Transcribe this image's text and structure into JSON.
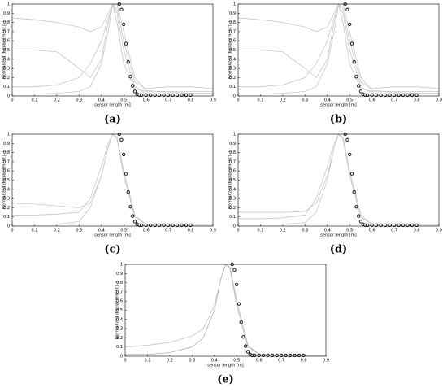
{
  "chart_data": [
    {
      "type": "line",
      "label": "(a)",
      "xlabel": "sensor length [m]",
      "ylabel": "Normalized displacement [-]",
      "xlim": [
        0,
        0.9
      ],
      "ylim": [
        0,
        1
      ],
      "grid": false,
      "xticks": [
        0,
        0.1,
        0.2,
        0.3,
        0.4,
        0.5,
        0.6,
        0.7,
        0.8,
        0.9
      ],
      "yticks": [
        0,
        0.1,
        0.2,
        0.3,
        0.4,
        0.5,
        0.6,
        0.7,
        0.8,
        0.9,
        1
      ],
      "series": [
        {
          "color": "#c8c8c8",
          "marker": false,
          "x": [
            0,
            0.1,
            0.2,
            0.3,
            0.35,
            0.4,
            0.43,
            0.45,
            0.47,
            0.5,
            0.55,
            0.6,
            0.7,
            0.8,
            0.9
          ],
          "values": [
            0.85,
            0.83,
            0.8,
            0.75,
            0.7,
            0.75,
            0.9,
            1,
            0.8,
            0.35,
            0.08,
            0.05,
            0.05,
            0.05,
            0.05
          ]
        },
        {
          "color": "#c8c8c8",
          "marker": false,
          "x": [
            0,
            0.1,
            0.2,
            0.3,
            0.35,
            0.4,
            0.43,
            0.45,
            0.47,
            0.5,
            0.55,
            0.6,
            0.7,
            0.8,
            0.9
          ],
          "values": [
            0.5,
            0.5,
            0.48,
            0.3,
            0.2,
            0.4,
            0.8,
            1,
            0.95,
            0.6,
            0.15,
            0.08,
            0.1,
            0.1,
            0.08
          ]
        },
        {
          "color": "#c8c8c8",
          "marker": false,
          "x": [
            0,
            0.1,
            0.2,
            0.3,
            0.35,
            0.4,
            0.43,
            0.45,
            0.47,
            0.5,
            0.55,
            0.6,
            0.7,
            0.8,
            0.9
          ],
          "values": [
            0.1,
            0.1,
            0.12,
            0.2,
            0.35,
            0.6,
            0.85,
            0.98,
            1,
            0.7,
            0.2,
            0.06,
            0.04,
            0.03,
            0.03
          ]
        },
        {
          "color": "#c8c8c8",
          "marker": false,
          "x": [
            0,
            0.1,
            0.2,
            0.3,
            0.35,
            0.4,
            0.43,
            0.45,
            0.47,
            0.5,
            0.55,
            0.6,
            0.7,
            0.8,
            0.9
          ],
          "values": [
            0.02,
            0.02,
            0.03,
            0.05,
            0.1,
            0.35,
            0.7,
            1,
            0.9,
            0.5,
            0.1,
            0.03,
            0.02,
            0.02,
            0.02
          ]
        },
        {
          "color": "#000000",
          "marker": true,
          "x": [
            0.48,
            0.49,
            0.5,
            0.51,
            0.52,
            0.53,
            0.54,
            0.55,
            0.56,
            0.57,
            0.58,
            0.6,
            0.62,
            0.64,
            0.66,
            0.68,
            0.7,
            0.72,
            0.74,
            0.76,
            0.78,
            0.8
          ],
          "values": [
            1,
            0.94,
            0.78,
            0.57,
            0.37,
            0.21,
            0.11,
            0.05,
            0.02,
            0.01,
            0.01,
            0.01,
            0.01,
            0.01,
            0.01,
            0.01,
            0.01,
            0.01,
            0.01,
            0.01,
            0.01,
            0.01
          ]
        }
      ]
    },
    {
      "type": "line",
      "label": "(b)",
      "xlabel": "sensor length [m]",
      "ylabel": "Normalized displacement [-]",
      "xlim": [
        0,
        0.9
      ],
      "ylim": [
        0,
        1
      ],
      "grid": false,
      "xticks": [
        0,
        0.1,
        0.2,
        0.3,
        0.4,
        0.5,
        0.6,
        0.7,
        0.8,
        0.9
      ],
      "yticks": [
        0,
        0.1,
        0.2,
        0.3,
        0.4,
        0.5,
        0.6,
        0.7,
        0.8,
        0.9,
        1
      ],
      "series": [
        {
          "color": "#c8c8c8",
          "marker": false,
          "x": [
            0,
            0.1,
            0.2,
            0.3,
            0.35,
            0.4,
            0.43,
            0.45,
            0.47,
            0.5,
            0.55,
            0.6,
            0.7,
            0.8,
            0.9
          ],
          "values": [
            0.85,
            0.83,
            0.8,
            0.75,
            0.7,
            0.75,
            0.9,
            1,
            0.8,
            0.35,
            0.08,
            0.05,
            0.05,
            0.05,
            0.05
          ]
        },
        {
          "color": "#c8c8c8",
          "marker": false,
          "x": [
            0,
            0.1,
            0.2,
            0.3,
            0.35,
            0.4,
            0.43,
            0.45,
            0.47,
            0.5,
            0.55,
            0.6,
            0.7,
            0.8,
            0.9
          ],
          "values": [
            0.5,
            0.5,
            0.48,
            0.3,
            0.2,
            0.4,
            0.8,
            1,
            0.95,
            0.6,
            0.15,
            0.08,
            0.1,
            0.1,
            0.08
          ]
        },
        {
          "color": "#c8c8c8",
          "marker": false,
          "x": [
            0,
            0.1,
            0.2,
            0.3,
            0.35,
            0.4,
            0.43,
            0.45,
            0.47,
            0.5,
            0.55,
            0.6,
            0.7,
            0.8,
            0.9
          ],
          "values": [
            0.1,
            0.1,
            0.12,
            0.2,
            0.35,
            0.6,
            0.85,
            0.98,
            1,
            0.7,
            0.2,
            0.06,
            0.04,
            0.03,
            0.03
          ]
        },
        {
          "color": "#c8c8c8",
          "marker": false,
          "x": [
            0,
            0.1,
            0.2,
            0.3,
            0.35,
            0.4,
            0.43,
            0.45,
            0.47,
            0.5,
            0.55,
            0.6,
            0.7,
            0.8,
            0.9
          ],
          "values": [
            0.02,
            0.02,
            0.03,
            0.05,
            0.1,
            0.35,
            0.7,
            1,
            0.9,
            0.5,
            0.1,
            0.03,
            0.02,
            0.02,
            0.02
          ]
        },
        {
          "color": "#000000",
          "marker": true,
          "x": [
            0.48,
            0.49,
            0.5,
            0.51,
            0.52,
            0.53,
            0.54,
            0.55,
            0.56,
            0.57,
            0.58,
            0.6,
            0.62,
            0.64,
            0.66,
            0.68,
            0.7,
            0.72,
            0.74,
            0.76,
            0.78,
            0.8
          ],
          "values": [
            1,
            0.94,
            0.78,
            0.57,
            0.37,
            0.21,
            0.11,
            0.05,
            0.02,
            0.01,
            0.01,
            0.01,
            0.01,
            0.01,
            0.01,
            0.01,
            0.01,
            0.01,
            0.01,
            0.01,
            0.01,
            0.01
          ]
        }
      ]
    },
    {
      "type": "line",
      "label": "(c)",
      "xlabel": "sensor length [m]",
      "ylabel": "Normalized displacement [-]",
      "xlim": [
        0,
        0.9
      ],
      "ylim": [
        0,
        1
      ],
      "grid": false,
      "xticks": [
        0,
        0.1,
        0.2,
        0.3,
        0.4,
        0.5,
        0.6,
        0.7,
        0.8,
        0.9
      ],
      "yticks": [
        0,
        0.1,
        0.2,
        0.3,
        0.4,
        0.5,
        0.6,
        0.7,
        0.8,
        0.9,
        1
      ],
      "series": [
        {
          "color": "#c8c8c8",
          "marker": false,
          "x": [
            0,
            0.1,
            0.2,
            0.3,
            0.35,
            0.4,
            0.43,
            0.45,
            0.47,
            0.5,
            0.55,
            0.6,
            0.7,
            0.8,
            0.9
          ],
          "values": [
            0.25,
            0.24,
            0.22,
            0.2,
            0.25,
            0.55,
            0.85,
            1,
            0.95,
            0.55,
            0.1,
            0.02,
            0.01,
            0.01,
            0.01
          ]
        },
        {
          "color": "#c8c8c8",
          "marker": false,
          "x": [
            0,
            0.1,
            0.2,
            0.3,
            0.35,
            0.4,
            0.43,
            0.45,
            0.47,
            0.5,
            0.55,
            0.6,
            0.7,
            0.8,
            0.9
          ],
          "values": [
            0.12,
            0.12,
            0.13,
            0.15,
            0.3,
            0.65,
            0.9,
            1,
            0.97,
            0.6,
            0.12,
            0.02,
            0.01,
            0.01,
            0.01
          ]
        },
        {
          "color": "#c8c8c8",
          "marker": false,
          "x": [
            0,
            0.1,
            0.2,
            0.3,
            0.35,
            0.4,
            0.43,
            0.45,
            0.47,
            0.5,
            0.55,
            0.6,
            0.7,
            0.8,
            0.9
          ],
          "values": [
            0.02,
            0.02,
            0.02,
            0.05,
            0.2,
            0.55,
            0.85,
            1,
            0.95,
            0.6,
            0.1,
            0.02,
            0.01,
            0.01,
            0.01
          ]
        },
        {
          "color": "#000000",
          "marker": true,
          "x": [
            0.48,
            0.49,
            0.5,
            0.51,
            0.52,
            0.53,
            0.54,
            0.55,
            0.56,
            0.57,
            0.58,
            0.6,
            0.62,
            0.64,
            0.66,
            0.68,
            0.7,
            0.72,
            0.74,
            0.76,
            0.78,
            0.8
          ],
          "values": [
            1,
            0.94,
            0.78,
            0.57,
            0.37,
            0.21,
            0.11,
            0.05,
            0.02,
            0.01,
            0.01,
            0.01,
            0.01,
            0.01,
            0.01,
            0.01,
            0.01,
            0.01,
            0.01,
            0.01,
            0.01,
            0.01
          ]
        }
      ]
    },
    {
      "type": "line",
      "label": "(d)",
      "xlabel": "sensor length [m]",
      "ylabel": "Normalized displacement [-]",
      "xlim": [
        0,
        0.9
      ],
      "ylim": [
        0,
        1
      ],
      "grid": false,
      "xticks": [
        0,
        0.1,
        0.2,
        0.3,
        0.4,
        0.5,
        0.6,
        0.7,
        0.8,
        0.9
      ],
      "yticks": [
        0,
        0.1,
        0.2,
        0.3,
        0.4,
        0.5,
        0.6,
        0.7,
        0.8,
        0.9,
        1
      ],
      "series": [
        {
          "color": "#c8c8c8",
          "marker": false,
          "x": [
            0,
            0.1,
            0.2,
            0.3,
            0.35,
            0.4,
            0.43,
            0.45,
            0.47,
            0.5,
            0.55,
            0.6,
            0.7,
            0.8,
            0.9
          ],
          "values": [
            0.15,
            0.15,
            0.15,
            0.16,
            0.25,
            0.55,
            0.85,
            1,
            0.95,
            0.55,
            0.1,
            0.02,
            0.01,
            0.01,
            0.01
          ]
        },
        {
          "color": "#c8c8c8",
          "marker": false,
          "x": [
            0,
            0.1,
            0.2,
            0.3,
            0.35,
            0.4,
            0.43,
            0.45,
            0.47,
            0.5,
            0.55,
            0.6,
            0.7,
            0.8,
            0.9
          ],
          "values": [
            0.08,
            0.08,
            0.09,
            0.12,
            0.3,
            0.65,
            0.9,
            1,
            0.97,
            0.6,
            0.12,
            0.02,
            0.01,
            0.01,
            0.01
          ]
        },
        {
          "color": "#c8c8c8",
          "marker": false,
          "x": [
            0,
            0.1,
            0.2,
            0.3,
            0.35,
            0.4,
            0.43,
            0.45,
            0.47,
            0.5,
            0.55,
            0.6,
            0.7,
            0.8,
            0.9
          ],
          "values": [
            0.02,
            0.02,
            0.02,
            0.04,
            0.15,
            0.5,
            0.85,
            1,
            0.95,
            0.6,
            0.1,
            0.02,
            0.01,
            0.01,
            0.01
          ]
        },
        {
          "color": "#000000",
          "marker": true,
          "x": [
            0.48,
            0.49,
            0.5,
            0.51,
            0.52,
            0.53,
            0.54,
            0.55,
            0.56,
            0.57,
            0.58,
            0.6,
            0.62,
            0.64,
            0.66,
            0.68,
            0.7,
            0.72,
            0.74,
            0.76,
            0.78,
            0.8
          ],
          "values": [
            1,
            0.94,
            0.78,
            0.57,
            0.37,
            0.21,
            0.11,
            0.05,
            0.02,
            0.01,
            0.01,
            0.01,
            0.01,
            0.01,
            0.01,
            0.01,
            0.01,
            0.01,
            0.01,
            0.01,
            0.01,
            0.01
          ]
        }
      ]
    },
    {
      "type": "line",
      "label": "(e)",
      "xlabel": "sensor length [m]",
      "ylabel": "Normalized displacement [-]",
      "xlim": [
        0,
        0.9
      ],
      "ylim": [
        0,
        1
      ],
      "grid": false,
      "xticks": [
        0,
        0.1,
        0.2,
        0.3,
        0.4,
        0.5,
        0.6,
        0.7,
        0.8,
        0.9
      ],
      "yticks": [
        0,
        0.1,
        0.2,
        0.3,
        0.4,
        0.5,
        0.6,
        0.7,
        0.8,
        0.9,
        1
      ],
      "series": [
        {
          "color": "#c8c8c8",
          "marker": false,
          "x": [
            0,
            0.1,
            0.2,
            0.3,
            0.35,
            0.4,
            0.43,
            0.45,
            0.47,
            0.5,
            0.55,
            0.6,
            0.7,
            0.8,
            0.9
          ],
          "values": [
            0.1,
            0.12,
            0.15,
            0.22,
            0.3,
            0.55,
            0.85,
            1,
            0.95,
            0.55,
            0.1,
            0.02,
            0.01,
            0.01,
            0.01
          ]
        },
        {
          "color": "#b0b0b0",
          "marker": false,
          "x": [
            0,
            0.1,
            0.2,
            0.3,
            0.35,
            0.4,
            0.43,
            0.45,
            0.47,
            0.5,
            0.55,
            0.6,
            0.7,
            0.8,
            0.9
          ],
          "values": [
            0.02,
            0.02,
            0.04,
            0.1,
            0.2,
            0.5,
            0.85,
            1,
            0.97,
            0.6,
            0.12,
            0.02,
            0.01,
            0.01,
            0.01
          ]
        },
        {
          "color": "#000000",
          "marker": true,
          "x": [
            0.48,
            0.49,
            0.5,
            0.51,
            0.52,
            0.53,
            0.54,
            0.55,
            0.56,
            0.57,
            0.58,
            0.6,
            0.62,
            0.64,
            0.66,
            0.68,
            0.7,
            0.72,
            0.74,
            0.76,
            0.78,
            0.8
          ],
          "values": [
            1,
            0.94,
            0.78,
            0.57,
            0.37,
            0.21,
            0.11,
            0.05,
            0.02,
            0.01,
            0.01,
            0.01,
            0.01,
            0.01,
            0.01,
            0.01,
            0.01,
            0.01,
            0.01,
            0.01,
            0.01,
            0.01
          ]
        }
      ]
    }
  ]
}
